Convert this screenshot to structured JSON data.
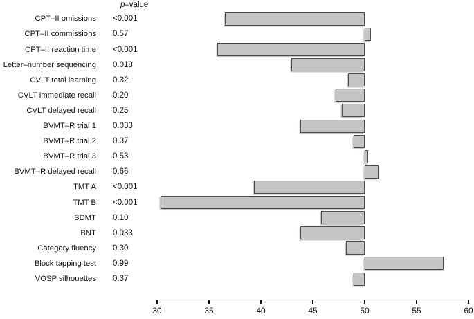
{
  "header": {
    "p_italic": "p",
    "p_rest": "–value"
  },
  "chart_data": {
    "type": "bar",
    "orientation": "horizontal",
    "title": "",
    "xlabel": "",
    "ylabel": "",
    "baseline": 50,
    "xlim": [
      30,
      60
    ],
    "x_ticks": [
      "30",
      "35",
      "40",
      "45",
      "50",
      "55",
      "60"
    ],
    "x_tick_values": [
      30,
      35,
      40,
      45,
      50,
      55,
      60
    ],
    "grid": false,
    "legend": false,
    "categories": [
      "CPT–II omissions",
      "CPT–II commissions",
      "CPT–II reaction time",
      "Letter–number sequencing",
      "CVLT total learning",
      "CVLT immediate recall",
      "CVLT delayed recall",
      "BVMT–R trial 1",
      "BVMT–R trial 2",
      "BVMT–R trial 3",
      "BVMT–R delayed recall",
      "TMT A",
      "TMT B",
      "SDMT",
      "BNT",
      "Category fluency",
      "Block tapping test",
      "VOSP silhouettes"
    ],
    "values": [
      36.5,
      50.6,
      35.8,
      42.9,
      48.4,
      47.2,
      47.8,
      43.8,
      48.9,
      50.3,
      51.3,
      39.3,
      30.3,
      45.8,
      43.8,
      48.2,
      57.6,
      48.9
    ],
    "p_values": [
      "<0.001",
      "0.57",
      "<0.001",
      "0.018",
      "0.32",
      "0.20",
      "0.25",
      "0.033",
      "0.37",
      "0.53",
      "0.66",
      "<0.001",
      "<0.001",
      "0.10",
      "0.033",
      "0.30",
      "0.99",
      "0.37"
    ],
    "colors": {
      "bar_fill": "#c4c4c4",
      "bar_border": "#4a4a4a",
      "axis": "#111111",
      "text": "#111111"
    }
  }
}
